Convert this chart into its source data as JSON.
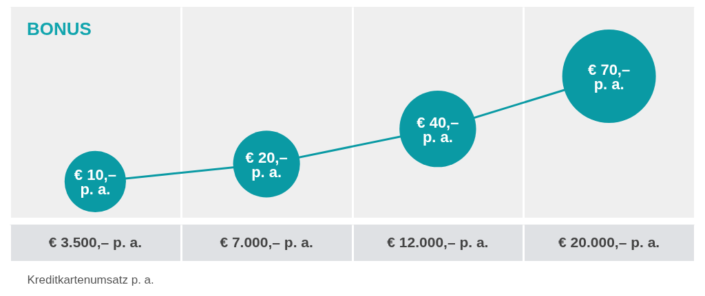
{
  "chart_data": {
    "type": "bubble",
    "title": "BONUS",
    "xlabel": "Kreditkartenumsatz p. a.",
    "categories": [
      "€ 3.500,– p. a.",
      "€ 7.000,– p. a.",
      "€ 12.000,– p. a.",
      "€ 20.000,– p. a."
    ],
    "values": [
      10,
      20,
      40,
      70
    ],
    "sizes": [
      0.43,
      0.51,
      0.67,
      1
    ],
    "color": "#0a9aa4",
    "value_labels": [
      "€ 10,–\np. a.",
      "€ 20,–\np. a.",
      "€ 40,–\np. a.",
      "€ 70,–\np. a."
    ],
    "line_style": "solid",
    "grid": "x",
    "tick_labels": "x"
  }
}
